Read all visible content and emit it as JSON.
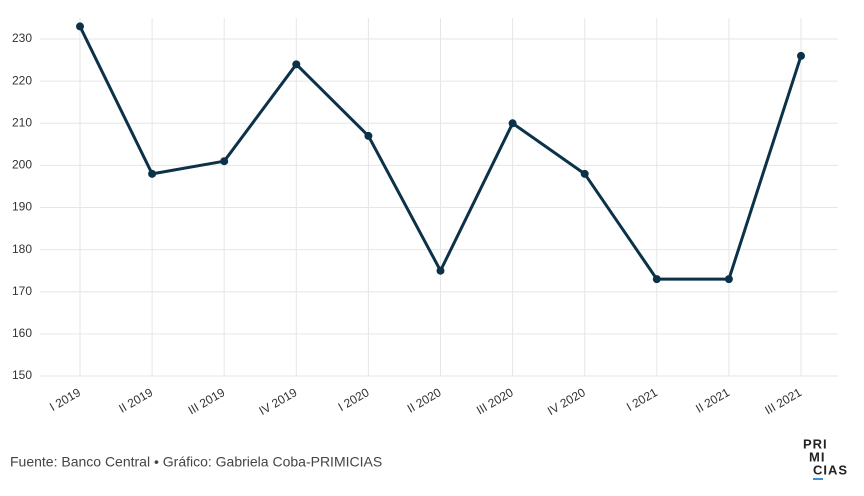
{
  "chart_data": {
    "type": "line",
    "categories": [
      "I 2019",
      "II 2019",
      "III 2019",
      "IV 2019",
      "I 2020",
      "II 2020",
      "III 2020",
      "IV 2020",
      "I 2021",
      "II 2021",
      "III 2021"
    ],
    "values": [
      233,
      198,
      201,
      224,
      207,
      175,
      210,
      198,
      173,
      173,
      226
    ],
    "color": "#0b3248",
    "ylim": [
      150,
      235
    ],
    "yticks": [
      150,
      160,
      170,
      180,
      190,
      200,
      210,
      220,
      230
    ],
    "grid": true
  },
  "footer": {
    "source": "Fuente: Banco Central • Gráfico: Gabriela Coba-PRIMICIAS",
    "logo": [
      "PRI",
      "MI",
      "CIAS"
    ]
  }
}
